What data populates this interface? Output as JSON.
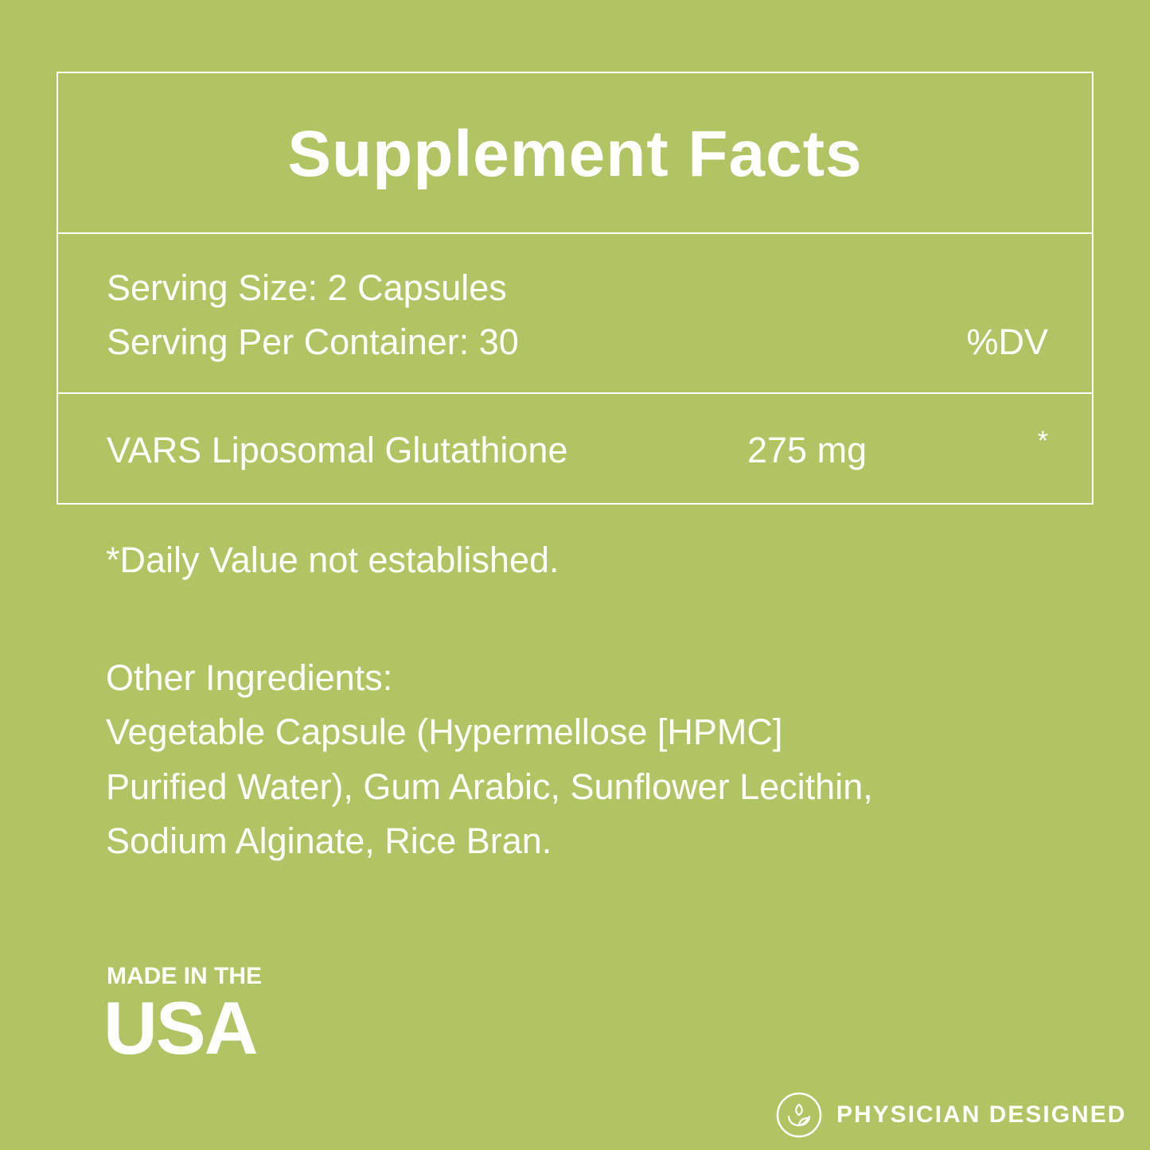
{
  "title": "Supplement Facts",
  "serving_size": "Serving Size: 2 Capsules",
  "servings_per_container": "Serving Per Container: 30",
  "dv_header": "%DV",
  "ingredient": {
    "name": "VARS Liposomal Glutathione",
    "amount": "275 mg",
    "dv": "*"
  },
  "footnote": "*Daily Value not established.",
  "other_ingredients": {
    "heading": "Other Ingredients:",
    "lines": [
      "Vegetable Capsule (Hypermellose [HPMC]",
      "Purified Water), Gum Arabic, Sunflower Lecithin,",
      "Sodium Alginate, Rice Bran."
    ]
  },
  "made_in": "MADE IN THE",
  "country": "USA",
  "badge": {
    "label": "PHYSICIAN DESIGNED",
    "icon": "sprout-in-hands-icon"
  },
  "colors": {
    "background": "#b0c464",
    "text": "#ffffff"
  }
}
